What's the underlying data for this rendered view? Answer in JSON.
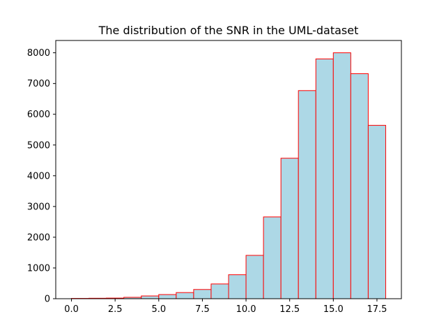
{
  "chart_data": {
    "type": "bar",
    "title": "The distribution of the SNR in the UML-dataset",
    "xlabel": "",
    "ylabel": "",
    "bins": [
      {
        "start": 0,
        "end": 1,
        "count": 10
      },
      {
        "start": 1,
        "end": 2,
        "count": 15
      },
      {
        "start": 2,
        "end": 3,
        "count": 20
      },
      {
        "start": 3,
        "end": 4,
        "count": 45
      },
      {
        "start": 4,
        "end": 5,
        "count": 90
      },
      {
        "start": 5,
        "end": 6,
        "count": 135
      },
      {
        "start": 6,
        "end": 7,
        "count": 200
      },
      {
        "start": 7,
        "end": 8,
        "count": 300
      },
      {
        "start": 8,
        "end": 9,
        "count": 480
      },
      {
        "start": 9,
        "end": 10,
        "count": 780
      },
      {
        "start": 10,
        "end": 11,
        "count": 1410
      },
      {
        "start": 11,
        "end": 12,
        "count": 2660
      },
      {
        "start": 12,
        "end": 13,
        "count": 4570
      },
      {
        "start": 13,
        "end": 14,
        "count": 6770
      },
      {
        "start": 14,
        "end": 15,
        "count": 7800
      },
      {
        "start": 15,
        "end": 16,
        "count": 8000
      },
      {
        "start": 16,
        "end": 17,
        "count": 7320
      },
      {
        "start": 17,
        "end": 18,
        "count": 5640
      }
    ],
    "xlim": [
      -0.9,
      18.9
    ],
    "ylim": [
      0,
      8400
    ],
    "xticks": [
      "0.0",
      "2.5",
      "5.0",
      "7.5",
      "10.0",
      "12.5",
      "15.0",
      "17.5"
    ],
    "yticks": [
      "0",
      "1000",
      "2000",
      "3000",
      "4000",
      "5000",
      "6000",
      "7000",
      "8000"
    ],
    "bar_fill": "#add8e6",
    "bar_edge": "#ff0000",
    "grid": false
  }
}
